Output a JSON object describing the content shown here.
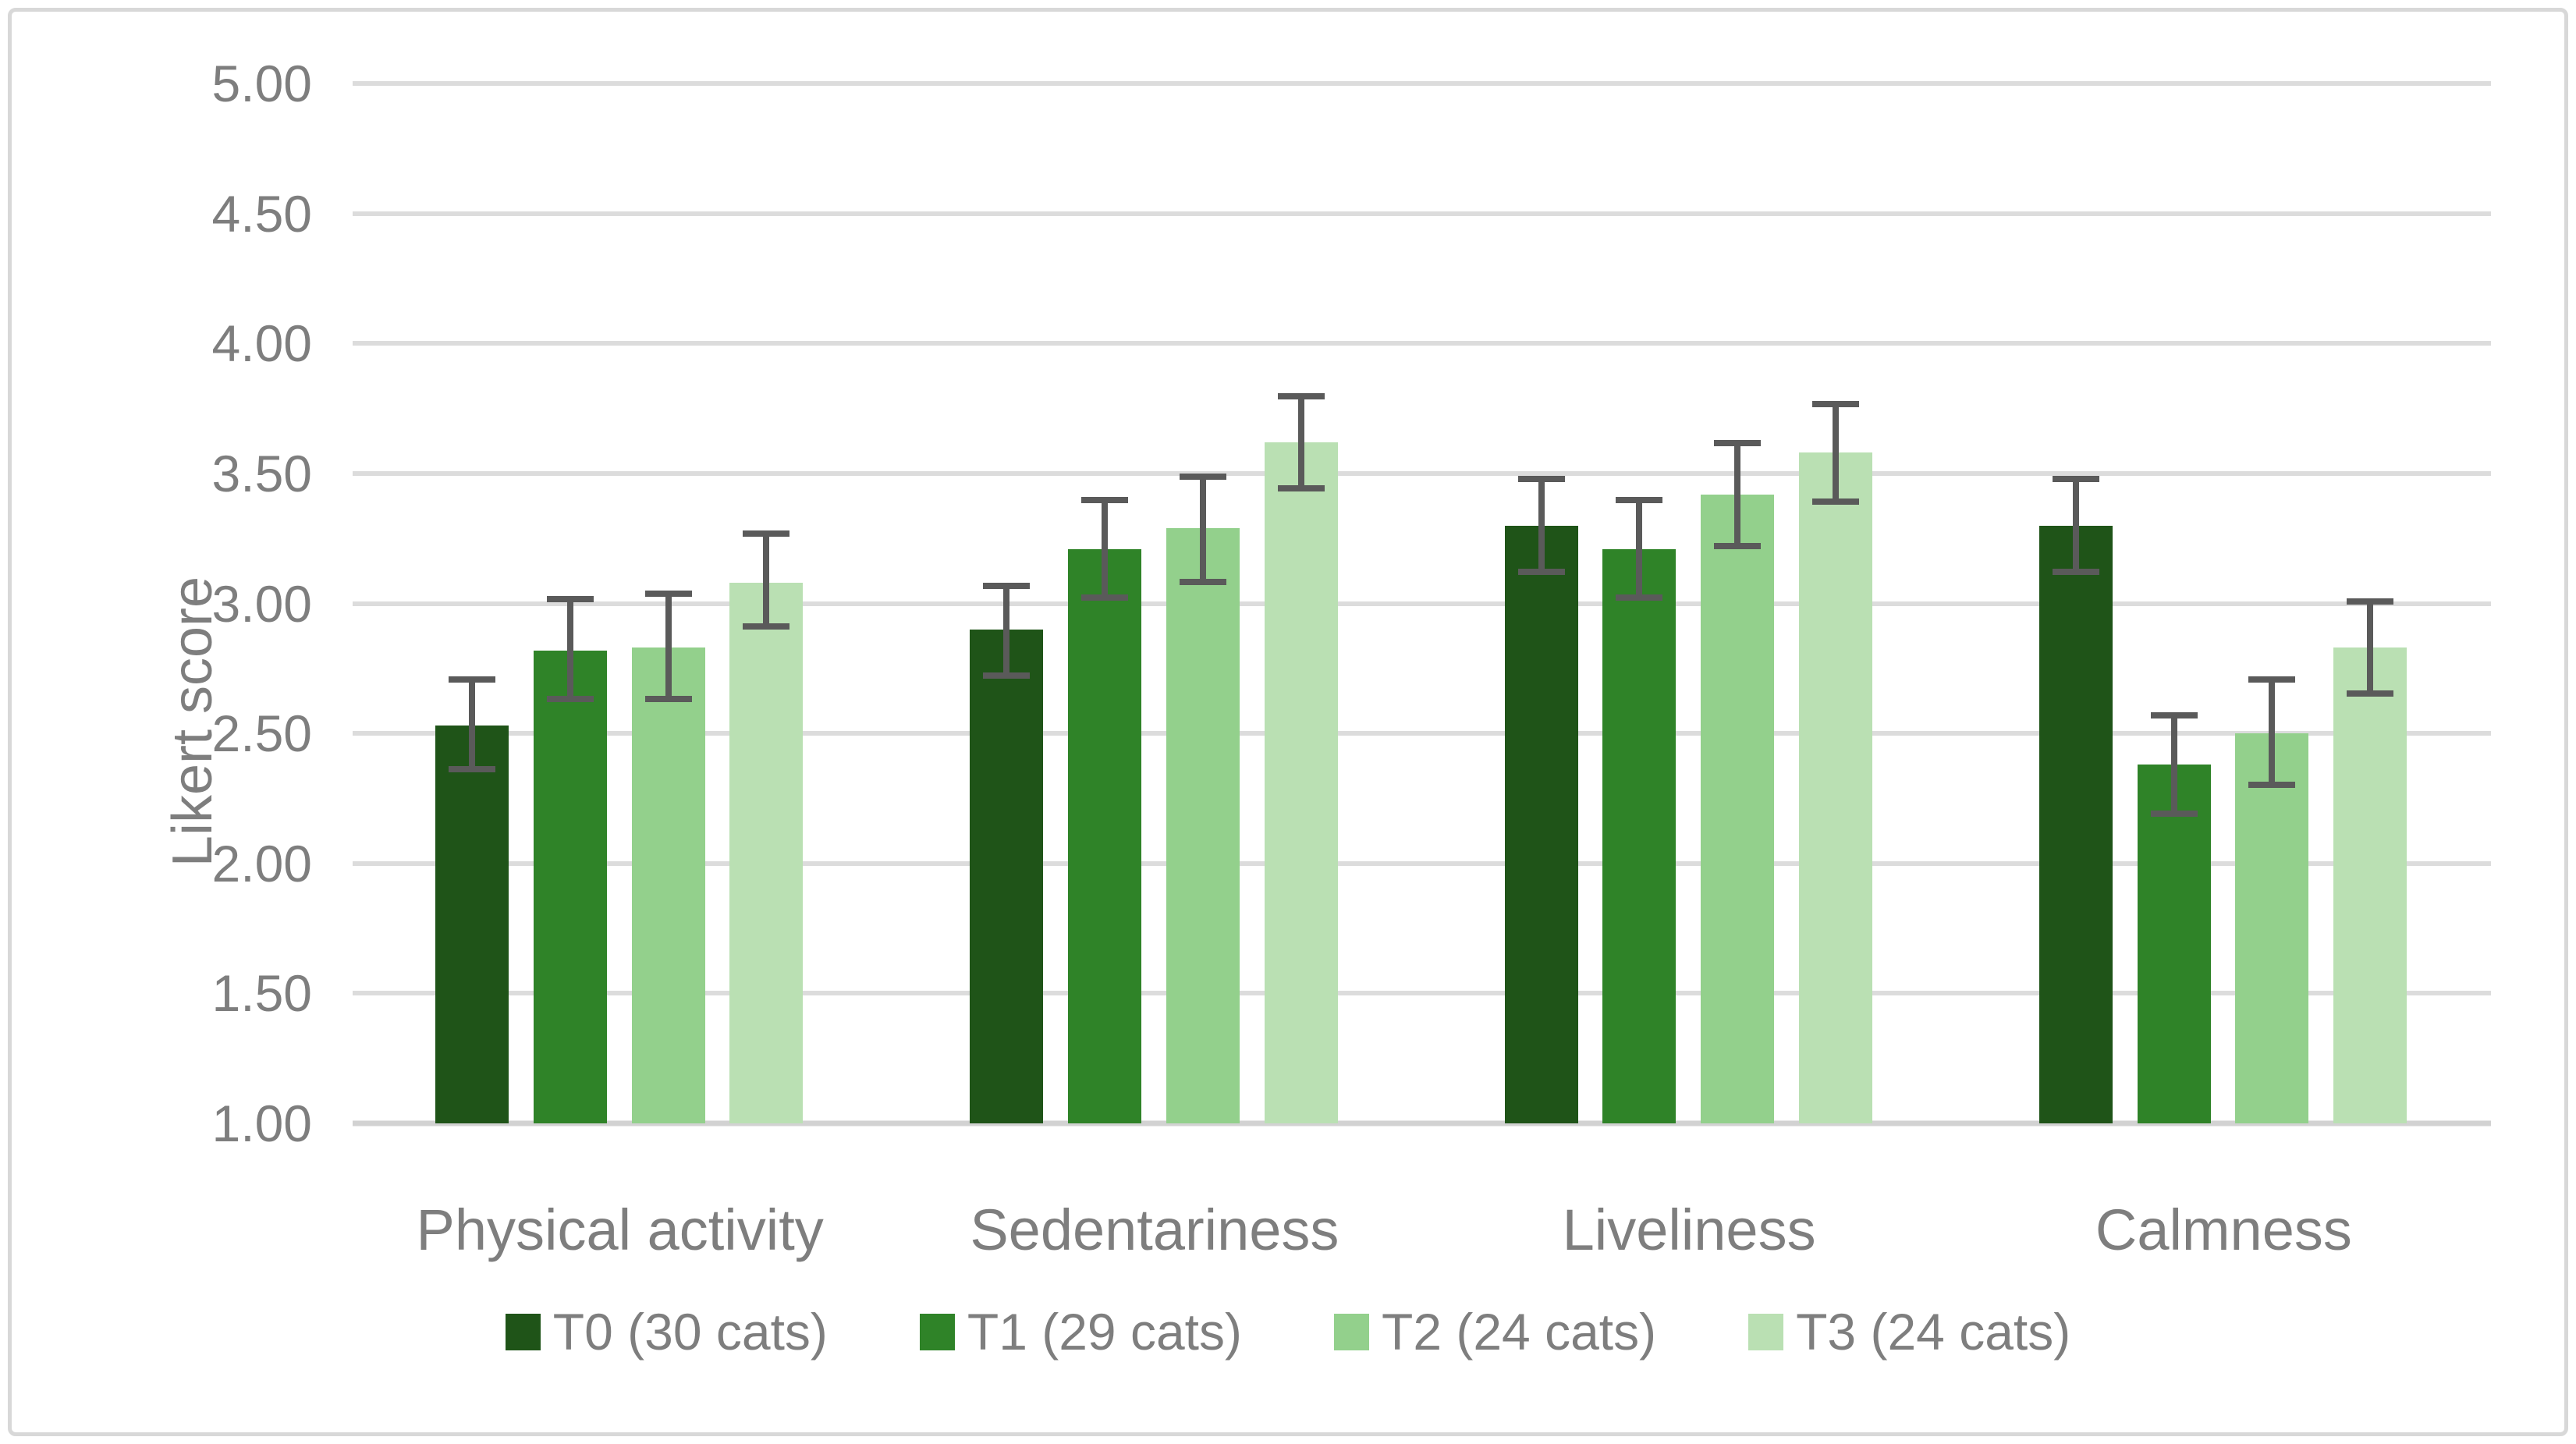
{
  "chart_data": {
    "type": "bar",
    "title": "",
    "xlabel": "",
    "ylabel": "Likert score",
    "ylim": [
      1.0,
      5.0
    ],
    "ytick_step": 0.5,
    "ytick_labels_top_to_bottom": [
      "5.00",
      "4.50",
      "4.00",
      "3.50",
      "3.00",
      "2.50",
      "2.00",
      "1.50",
      "1.00"
    ],
    "grid": true,
    "legend_position": "bottom",
    "error_bars": true,
    "categories": [
      "Physical activity",
      "Sedentariness",
      "Liveliness",
      "Calmness"
    ],
    "series": [
      {
        "name": "T0 (30 cats)",
        "color": "#1F5418",
        "values": [
          2.53,
          2.9,
          3.3,
          3.3
        ],
        "err_low": [
          2.35,
          2.71,
          3.11,
          3.11
        ],
        "err_high": [
          2.72,
          3.08,
          3.49,
          3.49
        ]
      },
      {
        "name": "T1 (29 cats)",
        "color": "#2F8328",
        "values": [
          2.82,
          3.21,
          3.21,
          2.38
        ],
        "err_low": [
          2.62,
          3.01,
          3.01,
          2.18
        ],
        "err_high": [
          3.03,
          3.41,
          3.41,
          2.58
        ]
      },
      {
        "name": "T2 (24 cats)",
        "color": "#93D08C",
        "values": [
          2.83,
          3.29,
          3.42,
          2.5
        ],
        "err_low": [
          2.62,
          3.07,
          3.21,
          2.29
        ],
        "err_high": [
          3.05,
          3.5,
          3.63,
          2.72
        ]
      },
      {
        "name": "T3 (24 cats)",
        "color": "#BAE0B3",
        "values": [
          3.08,
          3.62,
          3.58,
          2.83
        ],
        "err_low": [
          2.9,
          3.43,
          3.38,
          2.64
        ],
        "err_high": [
          3.28,
          3.81,
          3.78,
          3.02
        ]
      }
    ],
    "colors": {
      "error_bar": "#5A5A5A",
      "gridline": "#DCDCDC",
      "axis_line": "#D2D2D2",
      "border": "#D8D8D8",
      "text": "#7E7E7E"
    }
  }
}
